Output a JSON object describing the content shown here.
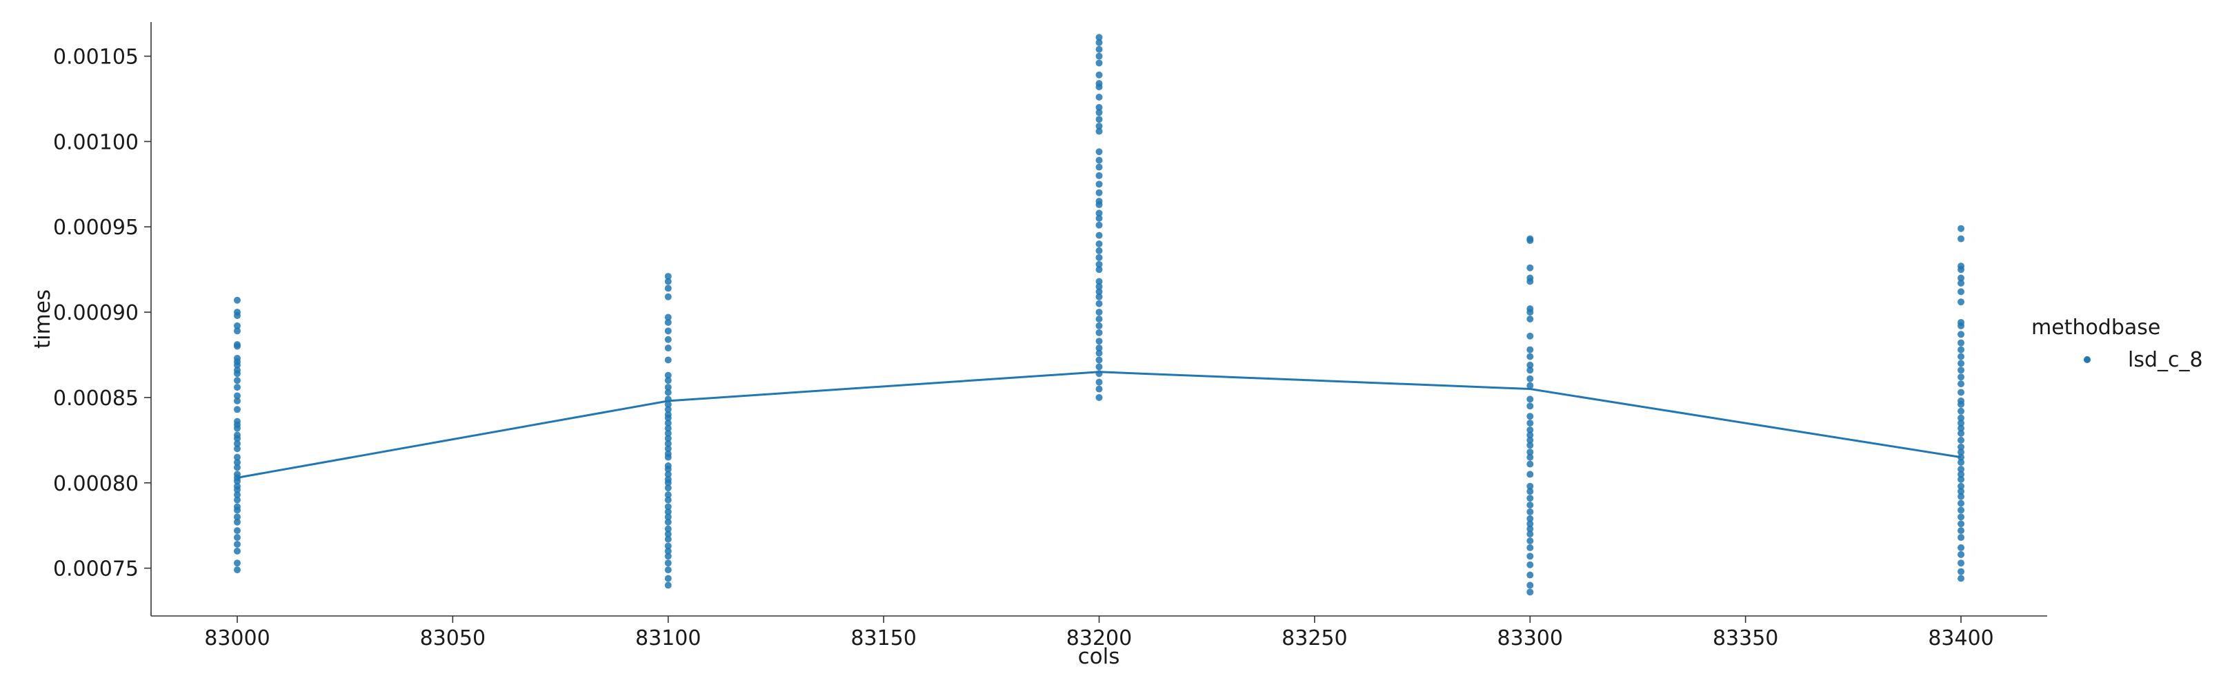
{
  "chart_data": {
    "type": "scatter",
    "xlabel": "cols",
    "ylabel": "times",
    "xlim": [
      82980,
      83420
    ],
    "ylim": [
      0.000722,
      0.00107
    ],
    "xticks": [
      83000,
      83050,
      83100,
      83150,
      83200,
      83250,
      83300,
      83350,
      83400
    ],
    "xtick_labels": [
      "83000",
      "83050",
      "83100",
      "83150",
      "83200",
      "83250",
      "83300",
      "83350",
      "83400"
    ],
    "yticks": [
      0.00075,
      0.0008,
      0.00085,
      0.0009,
      0.00095,
      0.001,
      0.00105
    ],
    "ytick_labels": [
      "0.00075",
      "0.00080",
      "0.00085",
      "0.00090",
      "0.00095",
      "0.00100",
      "0.00105"
    ],
    "grid": false,
    "legend": {
      "title": "methodbase",
      "placement": "right",
      "entries": [
        "lsd_c_8"
      ]
    },
    "colors": {
      "series": "#1f77b4",
      "axis": "#333333",
      "text": "#1a1a1a"
    },
    "series": [
      {
        "name": "lsd_c_8",
        "scatter_points": [
          {
            "x": 83000,
            "y": [
              0.000907,
              0.0009,
              0.000898,
              0.000892,
              0.000889,
              0.000881,
              0.00088,
              0.000873,
              0.000871,
              0.000869,
              0.000866,
              0.000864,
              0.00086,
              0.000856,
              0.000851,
              0.000848,
              0.000843,
              0.000836,
              0.000834,
              0.000832,
              0.000828,
              0.000826,
              0.000823,
              0.00082,
              0.000815,
              0.000812,
              0.000809,
              0.000805,
              0.000803,
              0.000801,
              0.000798,
              0.000796,
              0.000793,
              0.00079,
              0.000786,
              0.000784,
              0.00078,
              0.000777,
              0.000772,
              0.000768,
              0.000764,
              0.00076,
              0.000753,
              0.000749
            ]
          },
          {
            "x": 83100,
            "y": [
              0.000921,
              0.000918,
              0.000914,
              0.000909,
              0.000897,
              0.000894,
              0.000889,
              0.000884,
              0.000879,
              0.000872,
              0.000863,
              0.00086,
              0.000856,
              0.000853,
              0.000849,
              0.000846,
              0.000843,
              0.00084,
              0.000838,
              0.000835,
              0.000832,
              0.000829,
              0.000826,
              0.000823,
              0.00082,
              0.000817,
              0.000815,
              0.00081,
              0.000808,
              0.000805,
              0.000802,
              0.0008,
              0.000797,
              0.000793,
              0.00079,
              0.000786,
              0.000783,
              0.00078,
              0.000777,
              0.000773,
              0.00077,
              0.000767,
              0.000763,
              0.00076,
              0.000757,
              0.000753,
              0.000749,
              0.000744,
              0.00074
            ]
          },
          {
            "x": 83200,
            "y": [
              0.001061,
              0.001058,
              0.001054,
              0.00105,
              0.001046,
              0.001039,
              0.001034,
              0.001032,
              0.001026,
              0.00102,
              0.001017,
              0.001013,
              0.001009,
              0.001006,
              0.000994,
              0.000989,
              0.000985,
              0.00098,
              0.000975,
              0.00097,
              0.000965,
              0.000963,
              0.000958,
              0.000955,
              0.000951,
              0.000945,
              0.00094,
              0.000936,
              0.000932,
              0.000928,
              0.000925,
              0.000918,
              0.000915,
              0.000912,
              0.000909,
              0.000905,
              0.0009,
              0.000896,
              0.000892,
              0.000888,
              0.000883,
              0.000879,
              0.000876,
              0.000872,
              0.000868,
              0.000864,
              0.000859,
              0.000855,
              0.00085
            ]
          },
          {
            "x": 83300,
            "y": [
              0.000943,
              0.000942,
              0.000926,
              0.00092,
              0.000918,
              0.000902,
              0.0009,
              0.000896,
              0.000886,
              0.000878,
              0.000874,
              0.000869,
              0.000866,
              0.000861,
              0.000857,
              0.000849,
              0.000845,
              0.000839,
              0.000835,
              0.000831,
              0.000828,
              0.000825,
              0.000822,
              0.000818,
              0.000815,
              0.000811,
              0.000805,
              0.000798,
              0.000795,
              0.000791,
              0.000787,
              0.000783,
              0.000779,
              0.000776,
              0.000773,
              0.00077,
              0.000766,
              0.000762,
              0.000757,
              0.000752,
              0.000746,
              0.00074,
              0.000736
            ]
          },
          {
            "x": 83400,
            "y": [
              0.000949,
              0.000943,
              0.000927,
              0.000925,
              0.00092,
              0.000917,
              0.000912,
              0.000906,
              0.000894,
              0.000892,
              0.000887,
              0.000882,
              0.000878,
              0.000874,
              0.00087,
              0.000866,
              0.000862,
              0.000858,
              0.000853,
              0.000848,
              0.000846,
              0.000842,
              0.000838,
              0.000835,
              0.000832,
              0.000829,
              0.000825,
              0.000821,
              0.000818,
              0.000815,
              0.000812,
              0.000808,
              0.000805,
              0.000802,
              0.000798,
              0.000795,
              0.000792,
              0.000788,
              0.000784,
              0.00078,
              0.000776,
              0.000772,
              0.000768,
              0.000762,
              0.000758,
              0.000753,
              0.000748,
              0.000744
            ]
          }
        ],
        "line": {
          "x": [
            83000,
            83100,
            83200,
            83300,
            83400
          ],
          "y": [
            0.000803,
            0.000848,
            0.000865,
            0.000855,
            0.000815
          ]
        }
      }
    ]
  }
}
